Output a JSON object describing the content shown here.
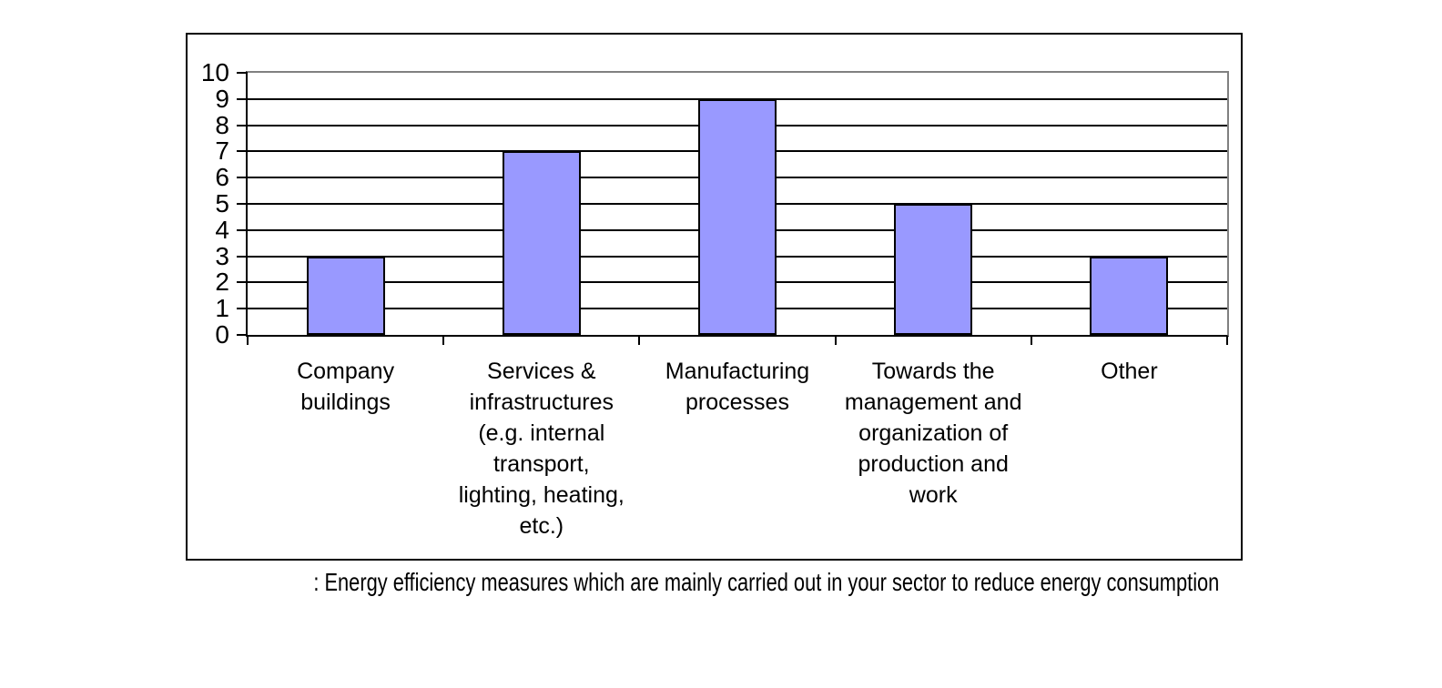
{
  "caption": ": Energy efficiency measures which are mainly carried out in your sector to reduce energy consumption",
  "chart_data": {
    "type": "bar",
    "title": "",
    "xlabel": "",
    "ylabel": "",
    "categories": [
      "Company buildings",
      "Services & infrastructures (e.g. internal transport, lighting, heating, etc.)",
      "Manufacturing processes",
      "Towards the management and organization of production and work",
      "Other"
    ],
    "category_display_lines": [
      [
        "Company",
        "buildings"
      ],
      [
        "Services &",
        "infrastructures",
        "(e.g. internal",
        "transport,",
        "lighting, heating,",
        "etc.)"
      ],
      [
        "Manufacturing",
        "processes"
      ],
      [
        "Towards the",
        "management and",
        "organization of",
        "production and",
        "work"
      ],
      [
        "Other"
      ]
    ],
    "values": [
      3,
      7,
      9,
      5,
      3
    ],
    "ylim": [
      0,
      10
    ],
    "ytick_step": 1,
    "yticks": [
      0,
      1,
      2,
      3,
      4,
      5,
      6,
      7,
      8,
      9,
      10
    ],
    "grid": "horizontal",
    "legend": false,
    "bar_fill_color": "#9999FF",
    "bar_border_color": "#000000",
    "gridline_color": "#000000",
    "axis_color": "#000000",
    "plot_border_color": "#808080"
  }
}
